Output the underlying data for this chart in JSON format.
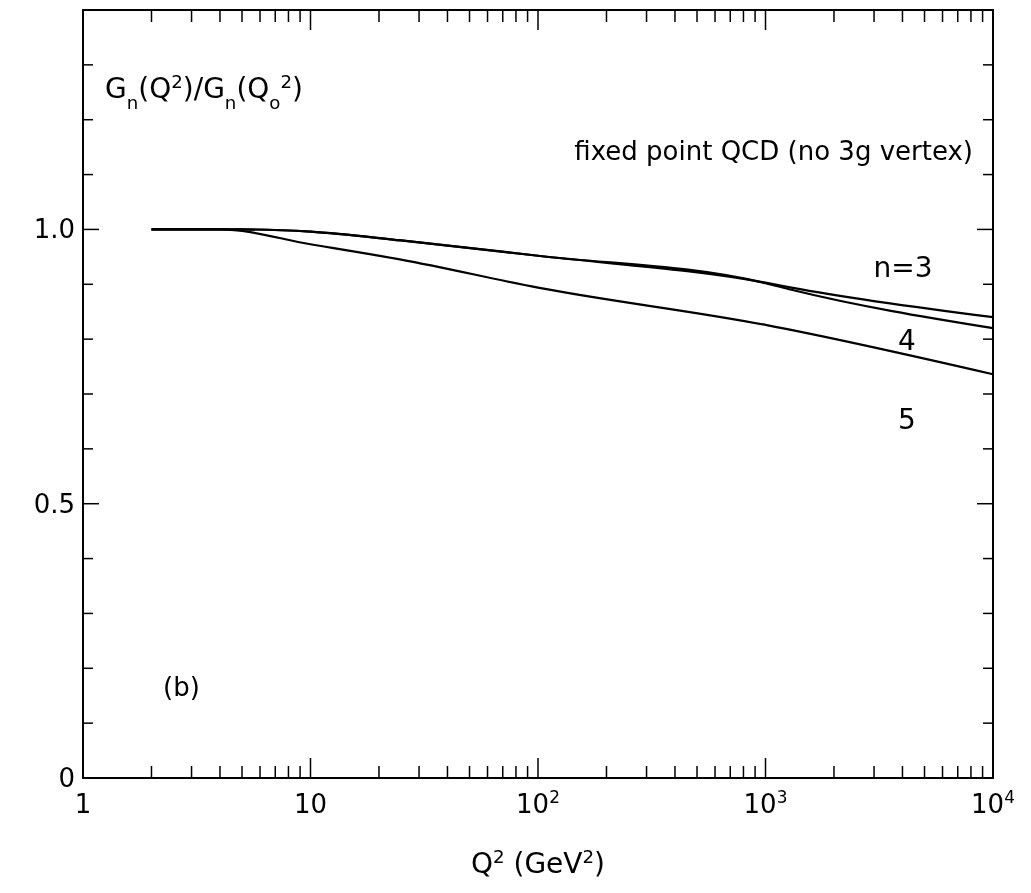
{
  "chart_data": {
    "type": "line",
    "ylabel": "G$_{n}$(Q$^{2}$)/G$_{n}$(Q$_{o}$$^{2}$)",
    "legend": "right",
    "xlabel": "Q$^{2}$ (GeV$^{2}$)",
    "annotations": [
      "fixed point QCD (no 3g vertex)",
      "(b)"
    ],
    "log": "x",
    "xlim": [
      1,
      10000
    ],
    "ylim": [
      0,
      1.4
    ],
    "xticks": [
      1,
      {
        "value": 2,
        "label": null
      },
      {
        "value": 3,
        "label": null
      },
      {
        "value": 4,
        "label": null
      },
      {
        "value": 5,
        "label": null
      },
      {
        "value": 6,
        "label": null
      },
      {
        "value": 7,
        "label": null
      },
      {
        "value": 8,
        "label": null
      },
      {
        "value": 9,
        "label": null
      },
      10,
      {
        "value": 20,
        "label": null
      },
      {
        "value": 30,
        "label": null
      },
      {
        "value": 40,
        "label": null
      },
      {
        "value": 50,
        "label": null
      },
      {
        "value": 60,
        "label": null
      },
      {
        "value": 70,
        "label": null
      },
      {
        "value": 80,
        "label": null
      },
      {
        "value": 90,
        "label": null
      },
      {
        "value": 100,
        "label": "10$^{2}$"
      },
      {
        "value": 200,
        "label": null
      },
      {
        "value": 300,
        "label": null
      },
      {
        "value": 400,
        "label": null
      },
      {
        "value": 500,
        "label": null
      },
      {
        "value": 600,
        "label": null
      },
      {
        "value": 700,
        "label": null
      },
      {
        "value": 800,
        "label": null
      },
      {
        "value": 900,
        "label": null
      },
      {
        "value": 1000,
        "label": "10$^{3}$"
      },
      {
        "value": 2000,
        "label": null
      },
      {
        "value": 3000,
        "label": null
      },
      {
        "value": 4000,
        "label": null
      },
      {
        "value": 5000,
        "label": null
      },
      {
        "value": 6000,
        "label": null
      },
      {
        "value": 7000,
        "label": null
      },
      {
        "value": 8000,
        "label": null
      },
      {
        "value": 9000,
        "label": null
      },
      {
        "value": 10000,
        "label": "10$^{4}$"
      }
    ],
    "yticks": [
      0,
      {
        "value": 0.1,
        "label": null
      },
      {
        "value": 0.2,
        "label": null
      },
      {
        "value": 0.3,
        "label": null
      },
      {
        "value": 0.4,
        "label": null
      },
      0.5,
      {
        "value": 0.6,
        "label": null
      },
      {
        "value": 0.7,
        "label": null
      },
      {
        "value": 0.8,
        "label": null
      },
      {
        "value": 0.9,
        "label": null
      },
      {
        "value": 1,
        "label": "1.0"
      },
      {
        "value": 1.1,
        "label": null
      },
      {
        "value": 1.2,
        "label": null
      },
      {
        "value": 1.3,
        "label": null
      },
      {
        "value": 1.4,
        "label": null
      }
    ],
    "series": [
      {
        "name": "n=3",
        "color": "#000000",
        "x": [
          2,
          5,
          10,
          25,
          100,
          1000,
          1300,
          10000
        ],
        "values": [
          1,
          1,
          0.996,
          0.98,
          0.952,
          0.903,
          0.894,
          0.84
        ]
      },
      {
        "name": "4",
        "color": "#000000",
        "x": [
          2,
          5,
          10,
          25,
          100,
          1000,
          1300,
          10000
        ],
        "values": [
          1,
          1,
          0.996,
          0.98,
          0.952,
          0.902,
          0.89,
          0.82
        ]
      },
      {
        "name": "5",
        "color": "#000000",
        "x": [
          2,
          4,
          10,
          25,
          100,
          1000,
          10000
        ],
        "values": [
          1,
          1,
          0.973,
          0.945,
          0.894,
          0.826,
          0.736
        ]
      }
    ]
  }
}
